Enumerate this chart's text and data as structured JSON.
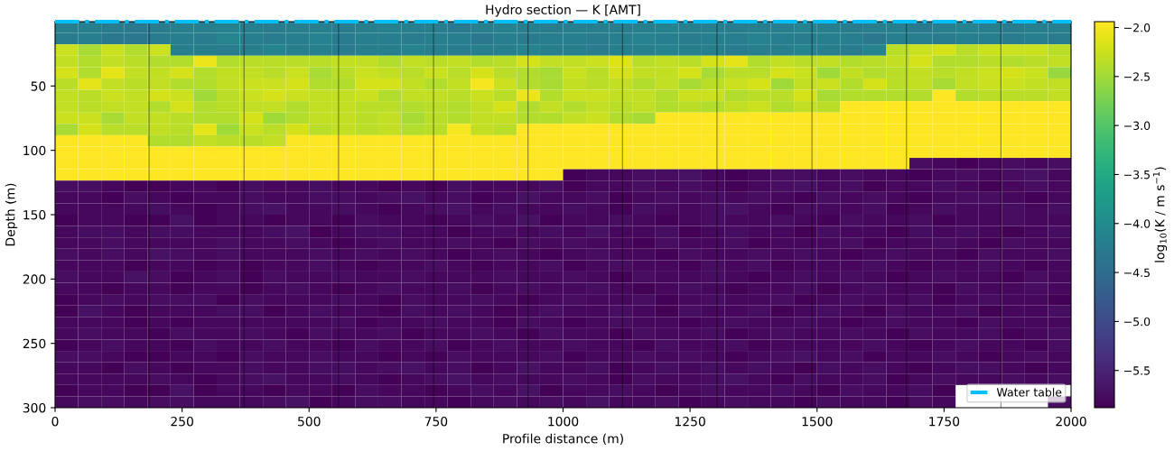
{
  "chart_data": {
    "type": "heatmap",
    "title": "Hydro section — K [AMT]",
    "xlabel": "Profile distance (m)",
    "ylabel": "Depth (m)",
    "clabel": "log$_{10}$(K / m s$^{−1}$)",
    "xlim": [
      0,
      2000
    ],
    "xticks": [
      0,
      250,
      500,
      750,
      1000,
      1250,
      1500,
      1750,
      2000
    ],
    "ylim": [
      300,
      0
    ],
    "yticks": [
      50,
      100,
      150,
      200,
      250,
      300
    ],
    "clim": [
      -5.88,
      -1.94
    ],
    "cticks": [
      {
        "value": -2.0,
        "label": "−2.0"
      },
      {
        "value": -2.5,
        "label": "−2.5"
      },
      {
        "value": -3.0,
        "label": "−3.0"
      },
      {
        "value": -3.5,
        "label": "−3.5"
      },
      {
        "value": -4.0,
        "label": "−4.0"
      },
      {
        "value": -4.5,
        "label": "−4.5"
      },
      {
        "value": -5.0,
        "label": "−5.0"
      },
      {
        "value": -5.5,
        "label": "−5.5"
      }
    ],
    "ref_lines": [
      {
        "axis": "x",
        "value": 185,
        "color": "#000000"
      },
      {
        "axis": "x",
        "value": 372,
        "color": "#000000"
      },
      {
        "axis": "x",
        "value": 558,
        "color": "#000000"
      },
      {
        "axis": "x",
        "value": 745,
        "color": "#000000"
      },
      {
        "axis": "x",
        "value": 931,
        "color": "#000000"
      },
      {
        "axis": "x",
        "value": 1117,
        "color": "#000000"
      },
      {
        "axis": "x",
        "value": 1303,
        "color": "#000000"
      },
      {
        "axis": "x",
        "value": 1490,
        "color": "#000000"
      },
      {
        "axis": "x",
        "value": 1676,
        "color": "#000000"
      },
      {
        "axis": "x",
        "value": 1862,
        "color": "#000000"
      }
    ],
    "series": [
      {
        "type": "line",
        "name": "Water table",
        "color": "#00bfff",
        "x": [
          0,
          2000
        ],
        "values": [
          0,
          0
        ],
        "line_style": "dashdot"
      }
    ],
    "legend": "bottom right",
    "cells": [
      [
        -4.2,
        -4.2,
        -4.25,
        -4.3,
        -4.25,
        -4.2,
        -4.2,
        -4.15,
        -4.2,
        -4.25,
        -4.2,
        -4.2,
        -4.25,
        -4.2,
        -4.15,
        -4.2,
        -4.2,
        -4.3,
        -4.2,
        -4.15,
        -4.2,
        -4.25,
        -4.2,
        -4.2,
        -4.25,
        -4.2,
        -4.15,
        -4.2,
        -4.2,
        -4.25,
        -4.2,
        -4.2,
        -4.15,
        -4.2,
        -4.25,
        -4.2,
        -4.2,
        -4.3,
        -4.2,
        -4.15,
        -4.2,
        -4.25,
        -4.2,
        -4.2
      ],
      [
        -4.25,
        -4.2,
        -4.3,
        -4.3,
        -4.25,
        -4.2,
        -4.25,
        -4.1,
        -4.2,
        -4.25,
        -4.2,
        -4.15,
        -4.25,
        -4.2,
        -4.2,
        -4.25,
        -4.2,
        -4.2,
        -4.3,
        -4.2,
        -4.25,
        -4.2,
        -4.2,
        -4.25,
        -4.2,
        -4.15,
        -4.2,
        -4.25,
        -4.2,
        -4.2,
        -4.15,
        -4.2,
        -4.25,
        -4.2,
        -4.2,
        -4.3,
        -4.2,
        -4.2,
        -4.25,
        -4.2,
        -4.2,
        -4.25,
        -4.2,
        -4.25
      ],
      [
        -2.25,
        -2.45,
        -2.25,
        -2.4,
        -2.25,
        -4.2,
        -4.2,
        -4.25,
        -4.2,
        -4.15,
        -4.2,
        -4.2,
        -4.25,
        -4.2,
        -4.2,
        -4.15,
        -4.2,
        -4.25,
        -4.2,
        -4.2,
        -4.15,
        -4.2,
        -4.2,
        -4.25,
        -4.2,
        -4.2,
        -4.15,
        -4.2,
        -4.2,
        -4.25,
        -4.2,
        -4.2,
        -4.15,
        -4.2,
        -4.25,
        -4.15,
        -2.35,
        -2.25,
        -2.2,
        -2.35,
        -2.25,
        -2.25,
        -2.25,
        -2.35
      ],
      [
        -2.3,
        -2.4,
        -2.3,
        -2.35,
        -2.4,
        -2.4,
        -2.05,
        -2.4,
        -2.35,
        -2.35,
        -2.35,
        -2.35,
        -2.3,
        -2.3,
        -2.4,
        -2.3,
        -2.35,
        -2.3,
        -2.4,
        -2.35,
        -2.2,
        -2.3,
        -2.3,
        -2.25,
        -2.15,
        -2.35,
        -2.3,
        -2.35,
        -2.2,
        -2.1,
        -2.4,
        -2.3,
        -2.35,
        -2.3,
        -2.4,
        -2.35,
        -2.3,
        -2.2,
        -2.4,
        -2.4,
        -2.35,
        -2.4,
        -2.35,
        -2.3
      ],
      [
        -2.2,
        -2.4,
        -2.1,
        -2.3,
        -2.3,
        -2.2,
        -2.4,
        -2.3,
        -2.3,
        -2.35,
        -2.25,
        -2.45,
        -2.35,
        -2.25,
        -2.3,
        -2.35,
        -2.25,
        -2.35,
        -2.2,
        -2.35,
        -2.4,
        -2.45,
        -2.25,
        -2.35,
        -2.2,
        -2.3,
        -2.3,
        -2.2,
        -2.45,
        -2.35,
        -2.35,
        -2.2,
        -2.25,
        -2.5,
        -2.3,
        -2.4,
        -2.35,
        -2.3,
        -2.35,
        -2.3,
        -2.25,
        -2.2,
        -2.25,
        -2.55
      ],
      [
        -2.35,
        -2.1,
        -2.3,
        -2.35,
        -2.3,
        -2.4,
        -2.4,
        -2.3,
        -2.25,
        -2.25,
        -2.2,
        -2.4,
        -2.4,
        -2.2,
        -2.2,
        -2.3,
        -2.4,
        -2.3,
        -2.0,
        -2.25,
        -2.4,
        -2.45,
        -2.3,
        -2.35,
        -2.3,
        -2.4,
        -2.3,
        -2.45,
        -2.35,
        -2.25,
        -2.2,
        -2.5,
        -2.3,
        -2.25,
        -2.4,
        -2.2,
        -2.35,
        -2.3,
        -2.45,
        -2.3,
        -2.25,
        -2.25,
        -2.3,
        -2.3
      ],
      [
        -2.3,
        -2.35,
        -2.25,
        -2.3,
        -2.2,
        -2.25,
        -2.5,
        -2.35,
        -2.25,
        -2.2,
        -2.25,
        -2.3,
        -2.3,
        -2.25,
        -2.4,
        -2.3,
        -2.3,
        -2.35,
        -2.25,
        -2.35,
        -2.05,
        -2.4,
        -2.25,
        -2.25,
        -2.3,
        -2.3,
        -2.4,
        -2.25,
        -2.25,
        -2.4,
        -2.35,
        -2.35,
        -2.2,
        -2.45,
        -2.4,
        -2.4,
        -2.4,
        -2.4,
        -1.94,
        -2.4,
        -2.35,
        -2.35,
        -2.35,
        -2.3
      ],
      [
        -2.3,
        -2.35,
        -2.3,
        -2.3,
        -2.4,
        -2.2,
        -2.4,
        -2.35,
        -2.3,
        -2.3,
        -2.4,
        -2.3,
        -2.3,
        -2.35,
        -2.35,
        -2.4,
        -2.35,
        -2.4,
        -2.3,
        -2.2,
        -2.4,
        -2.3,
        -2.4,
        -2.3,
        -2.35,
        -2.3,
        -2.4,
        -2.35,
        -2.4,
        -2.3,
        -2.25,
        -2.4,
        -2.3,
        -2.35,
        -1.94,
        -1.94,
        -1.94,
        -1.94,
        -1.94,
        -1.94,
        -1.94,
        -1.94,
        -1.94,
        -1.94
      ],
      [
        -2.25,
        -2.25,
        -2.45,
        -2.3,
        -2.3,
        -2.35,
        -2.4,
        -2.4,
        -2.2,
        -2.5,
        -2.4,
        -2.3,
        -2.3,
        -2.35,
        -2.3,
        -2.45,
        -2.35,
        -2.4,
        -2.3,
        -2.3,
        -2.4,
        -2.4,
        -2.3,
        -2.25,
        -2.4,
        -2.45,
        -1.94,
        -1.94,
        -1.94,
        -1.94,
        -1.94,
        -1.94,
        -1.94,
        -1.94,
        -1.94,
        -1.94,
        -1.94,
        -1.94,
        -1.94,
        -1.94,
        -1.94,
        -1.94,
        -1.94,
        -1.94
      ],
      [
        -2.45,
        -2.2,
        -2.35,
        -2.35,
        -2.3,
        -2.35,
        -2.1,
        -2.5,
        -2.25,
        -2.35,
        -2.2,
        -2.35,
        -2.3,
        -2.35,
        -2.3,
        -2.4,
        -2.35,
        -2.0,
        -2.3,
        -2.35,
        -1.94,
        -1.94,
        -1.94,
        -1.94,
        -1.94,
        -1.94,
        -1.94,
        -1.94,
        -1.94,
        -1.94,
        -1.94,
        -1.94,
        -1.94,
        -1.94,
        -1.94,
        -1.94,
        -1.94,
        -1.94,
        -1.94,
        -1.94,
        -1.94,
        -1.94,
        -1.94,
        -1.94
      ],
      [
        -1.94,
        -1.94,
        -1.94,
        -1.94,
        -2.4,
        -2.4,
        -2.3,
        -2.35,
        -2.35,
        -2.3,
        -1.94,
        -1.94,
        -1.94,
        -1.94,
        -1.94,
        -1.94,
        -1.94,
        -1.94,
        -1.94,
        -1.94,
        -1.94,
        -1.94,
        -1.94,
        -1.94,
        -1.94,
        -1.94,
        -1.94,
        -1.94,
        -1.94,
        -1.94,
        -1.94,
        -1.94,
        -1.94,
        -1.94,
        -1.94,
        -1.94,
        -1.94,
        -1.94,
        -1.94,
        -1.94,
        -1.94,
        -1.94,
        -1.94,
        -1.94
      ],
      [
        -1.94,
        -1.94,
        -1.94,
        -1.94,
        -1.94,
        -1.94,
        -1.94,
        -1.94,
        -1.94,
        -1.94,
        -1.94,
        -1.94,
        -1.94,
        -1.94,
        -1.94,
        -1.94,
        -1.94,
        -1.94,
        -1.94,
        -1.94,
        -1.94,
        -1.94,
        -1.94,
        -1.94,
        -1.94,
        -1.94,
        -1.94,
        -1.94,
        -1.94,
        -1.94,
        -1.94,
        -1.94,
        -1.94,
        -1.94,
        -1.94,
        -1.94,
        -1.94,
        -1.94,
        -1.94,
        -1.94,
        -1.94,
        -1.94,
        -1.94,
        -1.94
      ],
      [
        -1.94,
        -1.94,
        -1.94,
        -1.94,
        -1.94,
        -1.94,
        -1.94,
        -1.94,
        -1.94,
        -1.94,
        -1.94,
        -1.94,
        -1.94,
        -1.94,
        -1.94,
        -1.94,
        -1.94,
        -1.94,
        -1.94,
        -1.94,
        -1.94,
        -1.94,
        -1.94,
        -1.94,
        -1.94,
        -1.94,
        -1.94,
        -1.94,
        -1.94,
        -1.94,
        -1.94,
        -1.94,
        -1.94,
        -1.94,
        -1.94,
        -1.94,
        -1.94,
        -5.75,
        -5.8,
        -5.85,
        -5.8,
        -5.75,
        -5.8,
        -5.75
      ],
      [
        -1.94,
        -1.94,
        -1.94,
        -1.94,
        -1.94,
        -1.94,
        -1.94,
        -1.94,
        -1.94,
        -1.94,
        -1.94,
        -1.94,
        -1.94,
        -1.94,
        -1.94,
        -1.94,
        -1.94,
        -1.94,
        -1.94,
        -1.94,
        -1.94,
        -1.94,
        -5.85,
        -5.8,
        -5.8,
        -5.75,
        -5.75,
        -5.7,
        -5.8,
        -5.85,
        -5.8,
        -5.75,
        -5.75,
        -5.8,
        -5.75,
        -5.8,
        -5.8,
        -5.85,
        -5.8,
        -5.75,
        -5.8,
        -5.75,
        -5.7,
        -5.8
      ],
      [
        -5.75,
        -5.75,
        -5.8,
        -5.85,
        -5.85,
        -5.8,
        -5.8,
        -5.85,
        -5.75,
        -5.8,
        -5.8,
        -5.75,
        -5.8,
        -5.8,
        -5.85,
        -5.8,
        -5.85,
        -5.75,
        -5.8,
        -5.8,
        -5.8,
        -5.75,
        -5.85,
        -5.8,
        -5.8,
        -5.75,
        -5.8,
        -5.75,
        -5.8,
        -5.85,
        -5.8,
        -5.75,
        -5.7,
        -5.8,
        -5.75,
        -5.85,
        -5.8,
        -5.8,
        -5.75,
        -5.8,
        -5.85,
        -5.8,
        -5.75,
        -5.8
      ],
      [
        -5.8,
        -5.8,
        -5.85,
        -5.75,
        -5.8,
        -5.85,
        -5.8,
        -5.8,
        -5.75,
        -5.8,
        -5.8,
        -5.75,
        -5.75,
        -5.8,
        -5.75,
        -5.7,
        -5.8,
        -5.75,
        -5.85,
        -5.8,
        -5.7,
        -5.8,
        -5.8,
        -5.75,
        -5.85,
        -5.8,
        -5.75,
        -5.8,
        -5.75,
        -5.8,
        -5.75,
        -5.8,
        -5.85,
        -5.75,
        -5.8,
        -5.75,
        -5.8,
        -5.85,
        -5.8,
        -5.75,
        -5.75,
        -5.8,
        -5.85,
        -5.8
      ],
      [
        -5.8,
        -5.8,
        -5.8,
        -5.8,
        -5.75,
        -5.8,
        -5.85,
        -5.8,
        -5.75,
        -5.7,
        -5.8,
        -5.8,
        -5.75,
        -5.8,
        -5.85,
        -5.8,
        -5.75,
        -5.7,
        -5.8,
        -5.75,
        -5.8,
        -5.8,
        -5.75,
        -5.8,
        -5.85,
        -5.75,
        -5.8,
        -5.8,
        -5.75,
        -5.7,
        -5.8,
        -5.85,
        -5.75,
        -5.8,
        -5.8,
        -5.75,
        -5.85,
        -5.8,
        -5.75,
        -5.8,
        -5.8,
        -5.75,
        -5.8,
        -5.75
      ],
      [
        -5.85,
        -5.8,
        -5.8,
        -5.85,
        -5.85,
        -5.7,
        -5.85,
        -5.8,
        -5.8,
        -5.85,
        -5.8,
        -5.8,
        -5.85,
        -5.75,
        -5.8,
        -5.8,
        -5.85,
        -5.8,
        -5.75,
        -5.8,
        -5.7,
        -5.85,
        -5.8,
        -5.8,
        -5.75,
        -5.8,
        -5.85,
        -5.8,
        -5.75,
        -5.8,
        -5.8,
        -5.75,
        -5.8,
        -5.85,
        -5.75,
        -5.8,
        -5.8,
        -5.75,
        -5.85,
        -5.8,
        -5.8,
        -5.75,
        -5.8,
        -5.8
      ],
      [
        -5.8,
        -5.75,
        -5.75,
        -5.8,
        -5.75,
        -5.75,
        -5.8,
        -5.8,
        -5.8,
        -5.75,
        -5.7,
        -5.85,
        -5.8,
        -5.75,
        -5.75,
        -5.8,
        -5.8,
        -5.85,
        -5.8,
        -5.75,
        -5.8,
        -5.75,
        -5.8,
        -5.7,
        -5.8,
        -5.8,
        -5.75,
        -5.85,
        -5.8,
        -5.75,
        -5.8,
        -5.8,
        -5.85,
        -5.75,
        -5.8,
        -5.8,
        -5.85,
        -5.75,
        -5.8,
        -5.75,
        -5.8,
        -5.85,
        -5.8,
        -5.75
      ],
      [
        -5.8,
        -5.8,
        -5.75,
        -5.8,
        -5.8,
        -5.8,
        -5.8,
        -5.75,
        -5.8,
        -5.8,
        -5.75,
        -5.8,
        -5.85,
        -5.8,
        -5.75,
        -5.8,
        -5.8,
        -5.75,
        -5.8,
        -5.85,
        -5.75,
        -5.8,
        -5.75,
        -5.8,
        -5.8,
        -5.85,
        -5.75,
        -5.8,
        -5.8,
        -5.75,
        -5.85,
        -5.8,
        -5.8,
        -5.8,
        -5.75,
        -5.85,
        -5.8,
        -5.8,
        -5.75,
        -5.8,
        -5.85,
        -5.75,
        -5.8,
        -5.8
      ],
      [
        -5.75,
        -5.8,
        -5.75,
        -5.8,
        -5.7,
        -5.75,
        -5.8,
        -5.75,
        -5.8,
        -5.8,
        -5.8,
        -5.75,
        -5.8,
        -5.75,
        -5.8,
        -5.75,
        -5.8,
        -5.85,
        -5.8,
        -5.75,
        -5.8,
        -5.85,
        -5.8,
        -5.75,
        -5.8,
        -5.8,
        -5.85,
        -5.75,
        -5.8,
        -5.8,
        -5.75,
        -5.8,
        -5.75,
        -5.8,
        -5.85,
        -5.8,
        -5.75,
        -5.8,
        -5.8,
        -5.85,
        -5.75,
        -5.8,
        -5.8,
        -5.75
      ],
      [
        -5.8,
        -5.8,
        -5.8,
        -5.85,
        -5.8,
        -5.8,
        -5.85,
        -5.8,
        -5.85,
        -5.8,
        -5.8,
        -5.75,
        -5.8,
        -5.85,
        -5.8,
        -5.8,
        -5.75,
        -5.8,
        -5.85,
        -5.8,
        -5.8,
        -5.75,
        -5.85,
        -5.8,
        -5.75,
        -5.8,
        -5.8,
        -5.85,
        -5.75,
        -5.8,
        -5.75,
        -5.85,
        -5.8,
        -5.8,
        -5.8,
        -5.75,
        -5.8,
        -5.85,
        -5.8,
        -5.8,
        -5.75,
        -5.8,
        -5.85,
        -5.8
      ],
      [
        -5.75,
        -5.8,
        -5.8,
        -5.7,
        -5.75,
        -5.85,
        -5.8,
        -5.75,
        -5.85,
        -5.75,
        -5.8,
        -5.8,
        -5.75,
        -5.8,
        -5.8,
        -5.75,
        -5.8,
        -5.8,
        -5.8,
        -5.75,
        -5.8,
        -5.8,
        -5.75,
        -5.8,
        -5.85,
        -5.75,
        -5.8,
        -5.8,
        -5.75,
        -5.8,
        -5.85,
        -5.8,
        -5.75,
        -5.8,
        -5.75,
        -5.8,
        -5.85,
        -5.8,
        -5.75,
        -5.8,
        -5.8,
        -5.85,
        -5.75,
        -5.8
      ],
      [
        -5.8,
        -5.8,
        -5.85,
        -5.8,
        -5.8,
        -5.85,
        -5.8,
        -5.8,
        -5.85,
        -5.8,
        -5.75,
        -5.8,
        -5.85,
        -5.8,
        -5.75,
        -5.8,
        -5.8,
        -5.75,
        -5.85,
        -5.8,
        -5.75,
        -5.8,
        -5.8,
        -5.75,
        -5.8,
        -5.85,
        -5.8,
        -5.75,
        -5.8,
        -5.85,
        -5.8,
        -5.8,
        -5.75,
        -5.85,
        -5.8,
        -5.75,
        -5.8,
        -5.8,
        -5.85,
        -5.75,
        -5.8,
        -5.8,
        -5.75,
        -5.8
      ],
      [
        -5.85,
        -5.8,
        -5.75,
        -5.8,
        -5.75,
        -5.75,
        -5.75,
        -5.85,
        -5.75,
        -5.8,
        -5.8,
        -5.8,
        -5.75,
        -5.8,
        -5.85,
        -5.75,
        -5.8,
        -5.8,
        -5.75,
        -5.8,
        -5.85,
        -5.8,
        -5.75,
        -5.8,
        -5.8,
        -5.75,
        -5.85,
        -5.8,
        -5.75,
        -5.8,
        -5.8,
        -5.75,
        -5.85,
        -5.8,
        -5.75,
        -5.8,
        -5.8,
        -5.75,
        -5.85,
        -5.8,
        -5.75,
        -5.8,
        -5.8,
        -5.85
      ],
      [
        -5.85,
        -5.7,
        -5.8,
        -5.85,
        -5.8,
        -5.8,
        -5.8,
        -5.75,
        -5.75,
        -5.85,
        -5.8,
        -5.75,
        -5.8,
        -5.8,
        -5.85,
        -5.75,
        -5.8,
        -5.75,
        -5.8,
        -5.85,
        -5.8,
        -5.75,
        -5.8,
        -5.8,
        -5.75,
        -5.8,
        -5.85,
        -5.75,
        -5.8,
        -5.8,
        -5.75,
        -5.85,
        -5.8,
        -5.75,
        -5.8,
        -5.85,
        -5.75,
        -5.8,
        -5.8,
        -5.75,
        -5.85,
        -5.8,
        -5.8,
        -5.75
      ],
      [
        -5.8,
        -5.8,
        -5.8,
        -5.85,
        -5.8,
        -5.85,
        -5.8,
        -5.8,
        -5.8,
        -5.8,
        -5.8,
        -5.8,
        -5.75,
        -5.85,
        -5.8,
        -5.8,
        -5.75,
        -5.8,
        -5.8,
        -5.85,
        -5.75,
        -5.8,
        -5.85,
        -5.8,
        -5.75,
        -5.8,
        -5.8,
        -5.85,
        -5.8,
        -5.75,
        -5.8,
        -5.8,
        -5.75,
        -5.8,
        -5.85,
        -5.8,
        -5.75,
        -5.8,
        -5.8,
        -5.85,
        -5.75,
        -5.8,
        -5.8,
        -5.8
      ],
      [
        -5.8,
        -5.75,
        -5.8,
        -5.8,
        -5.85,
        -5.75,
        -5.8,
        -5.8,
        -5.75,
        -5.8,
        -5.85,
        -5.75,
        -5.8,
        -5.8,
        -5.75,
        -5.85,
        -5.8,
        -5.8,
        -5.75,
        -5.8,
        -5.85,
        -5.75,
        -5.8,
        -5.8,
        -5.85,
        -5.75,
        -5.8,
        -5.8,
        -5.75,
        -5.85,
        -5.8,
        -5.75,
        -5.8,
        -5.8,
        -5.75,
        -5.8,
        -5.85,
        -5.75,
        -5.8,
        -5.8,
        -5.75,
        -5.85,
        -5.8,
        -5.75
      ],
      [
        -5.85,
        -5.8,
        -5.75,
        -5.8,
        -5.8,
        -5.85,
        -5.75,
        -5.8,
        -5.8,
        -5.75,
        -5.8,
        -5.8,
        -5.85,
        -5.75,
        -5.8,
        -5.8,
        -5.75,
        -5.85,
        -5.8,
        -5.75,
        -5.8,
        -5.8,
        -5.75,
        -5.8,
        -5.8,
        -5.85,
        -5.75,
        -5.8,
        -5.8,
        -5.75,
        -5.85,
        -5.8,
        -5.8,
        -5.8,
        -5.8,
        -5.75,
        -5.8,
        -5.85,
        -5.8,
        -5.75,
        -5.8,
        -5.8,
        -5.85,
        -5.75
      ],
      [
        -5.75,
        -5.75,
        -5.8,
        -5.85,
        -5.85,
        -5.8,
        -5.8,
        -5.85,
        -5.75,
        -5.8,
        -5.8,
        -5.75,
        -5.8,
        -5.8,
        -5.85,
        -5.8,
        -5.85,
        -5.75,
        -5.8,
        -5.8,
        -5.8,
        -5.75,
        -5.85,
        -5.8,
        -5.8,
        -5.75,
        -5.8,
        -5.75,
        -5.8,
        -5.85,
        -5.8,
        -5.75,
        -5.7,
        -5.8,
        -5.75,
        -5.85,
        -5.8,
        -5.8,
        -5.75,
        -5.8,
        -5.85,
        -5.8,
        -5.75,
        -5.8
      ],
      [
        -5.8,
        -5.8,
        -5.85,
        -5.75,
        -5.8,
        -5.85,
        -5.8,
        -5.8,
        -5.75,
        -5.8,
        -5.8,
        -5.75,
        -5.75,
        -5.8,
        -5.75,
        -5.7,
        -5.8,
        -5.75,
        -5.85,
        -5.8,
        -5.7,
        -5.8,
        -5.8,
        -5.75,
        -5.85,
        -5.8,
        -5.75,
        -5.8,
        -5.75,
        -5.8,
        -5.75,
        -5.8,
        -5.85,
        -5.75,
        -5.8,
        -5.75,
        -5.8,
        -5.85,
        -5.8,
        -5.75,
        -5.75,
        -5.8,
        -5.85,
        -5.8
      ],
      [
        -5.8,
        -5.8,
        -5.8,
        -5.8,
        -5.75,
        -5.8,
        -5.85,
        -5.8,
        -5.75,
        -5.7,
        -5.8,
        -5.8,
        -5.75,
        -5.8,
        -5.85,
        -5.8,
        -5.75,
        -5.7,
        -5.8,
        -5.75,
        -5.8,
        -5.8,
        -5.75,
        -5.8,
        -5.85,
        -5.75,
        -5.8,
        -5.8,
        -5.75,
        -5.7,
        -5.8,
        -5.85,
        -5.75,
        -5.8,
        -5.8,
        -5.75,
        -5.85,
        -5.8,
        -5.75,
        -5.8,
        -5.8,
        -5.75,
        -5.8,
        -5.75
      ],
      [
        -5.85,
        -5.8,
        -5.8,
        -5.85,
        -5.85,
        -5.7,
        -5.85,
        -5.8,
        -5.8,
        -5.85,
        -5.8,
        -5.8,
        -5.85,
        -5.75,
        -5.8,
        -5.8,
        -5.85,
        -5.8,
        -5.75,
        -5.8,
        -5.7,
        -5.85,
        -5.8,
        -5.8,
        -5.75,
        -5.8,
        -5.85,
        -5.8,
        -5.75,
        -5.8,
        -5.8,
        -5.75,
        -5.8,
        -5.85,
        -5.75,
        -5.8,
        -5.8,
        -5.75,
        -5.85,
        null,
        null,
        null,
        null,
        null
      ],
      [
        -5.8,
        -5.75,
        -5.75,
        -5.8,
        -5.75,
        -5.75,
        -5.8,
        -5.8,
        -5.8,
        -5.75,
        -5.7,
        -5.85,
        -5.8,
        -5.75,
        -5.75,
        -5.8,
        -5.8,
        -5.85,
        -5.8,
        -5.75,
        -5.8,
        -5.75,
        -5.8,
        -5.7,
        -5.8,
        -5.8,
        -5.75,
        -5.85,
        -5.8,
        -5.75,
        -5.8,
        -5.8,
        -5.85,
        -5.75,
        -5.8,
        -5.8,
        -5.85,
        -5.75,
        -5.8,
        null,
        null,
        null,
        null,
        -5.75
      ]
    ]
  }
}
